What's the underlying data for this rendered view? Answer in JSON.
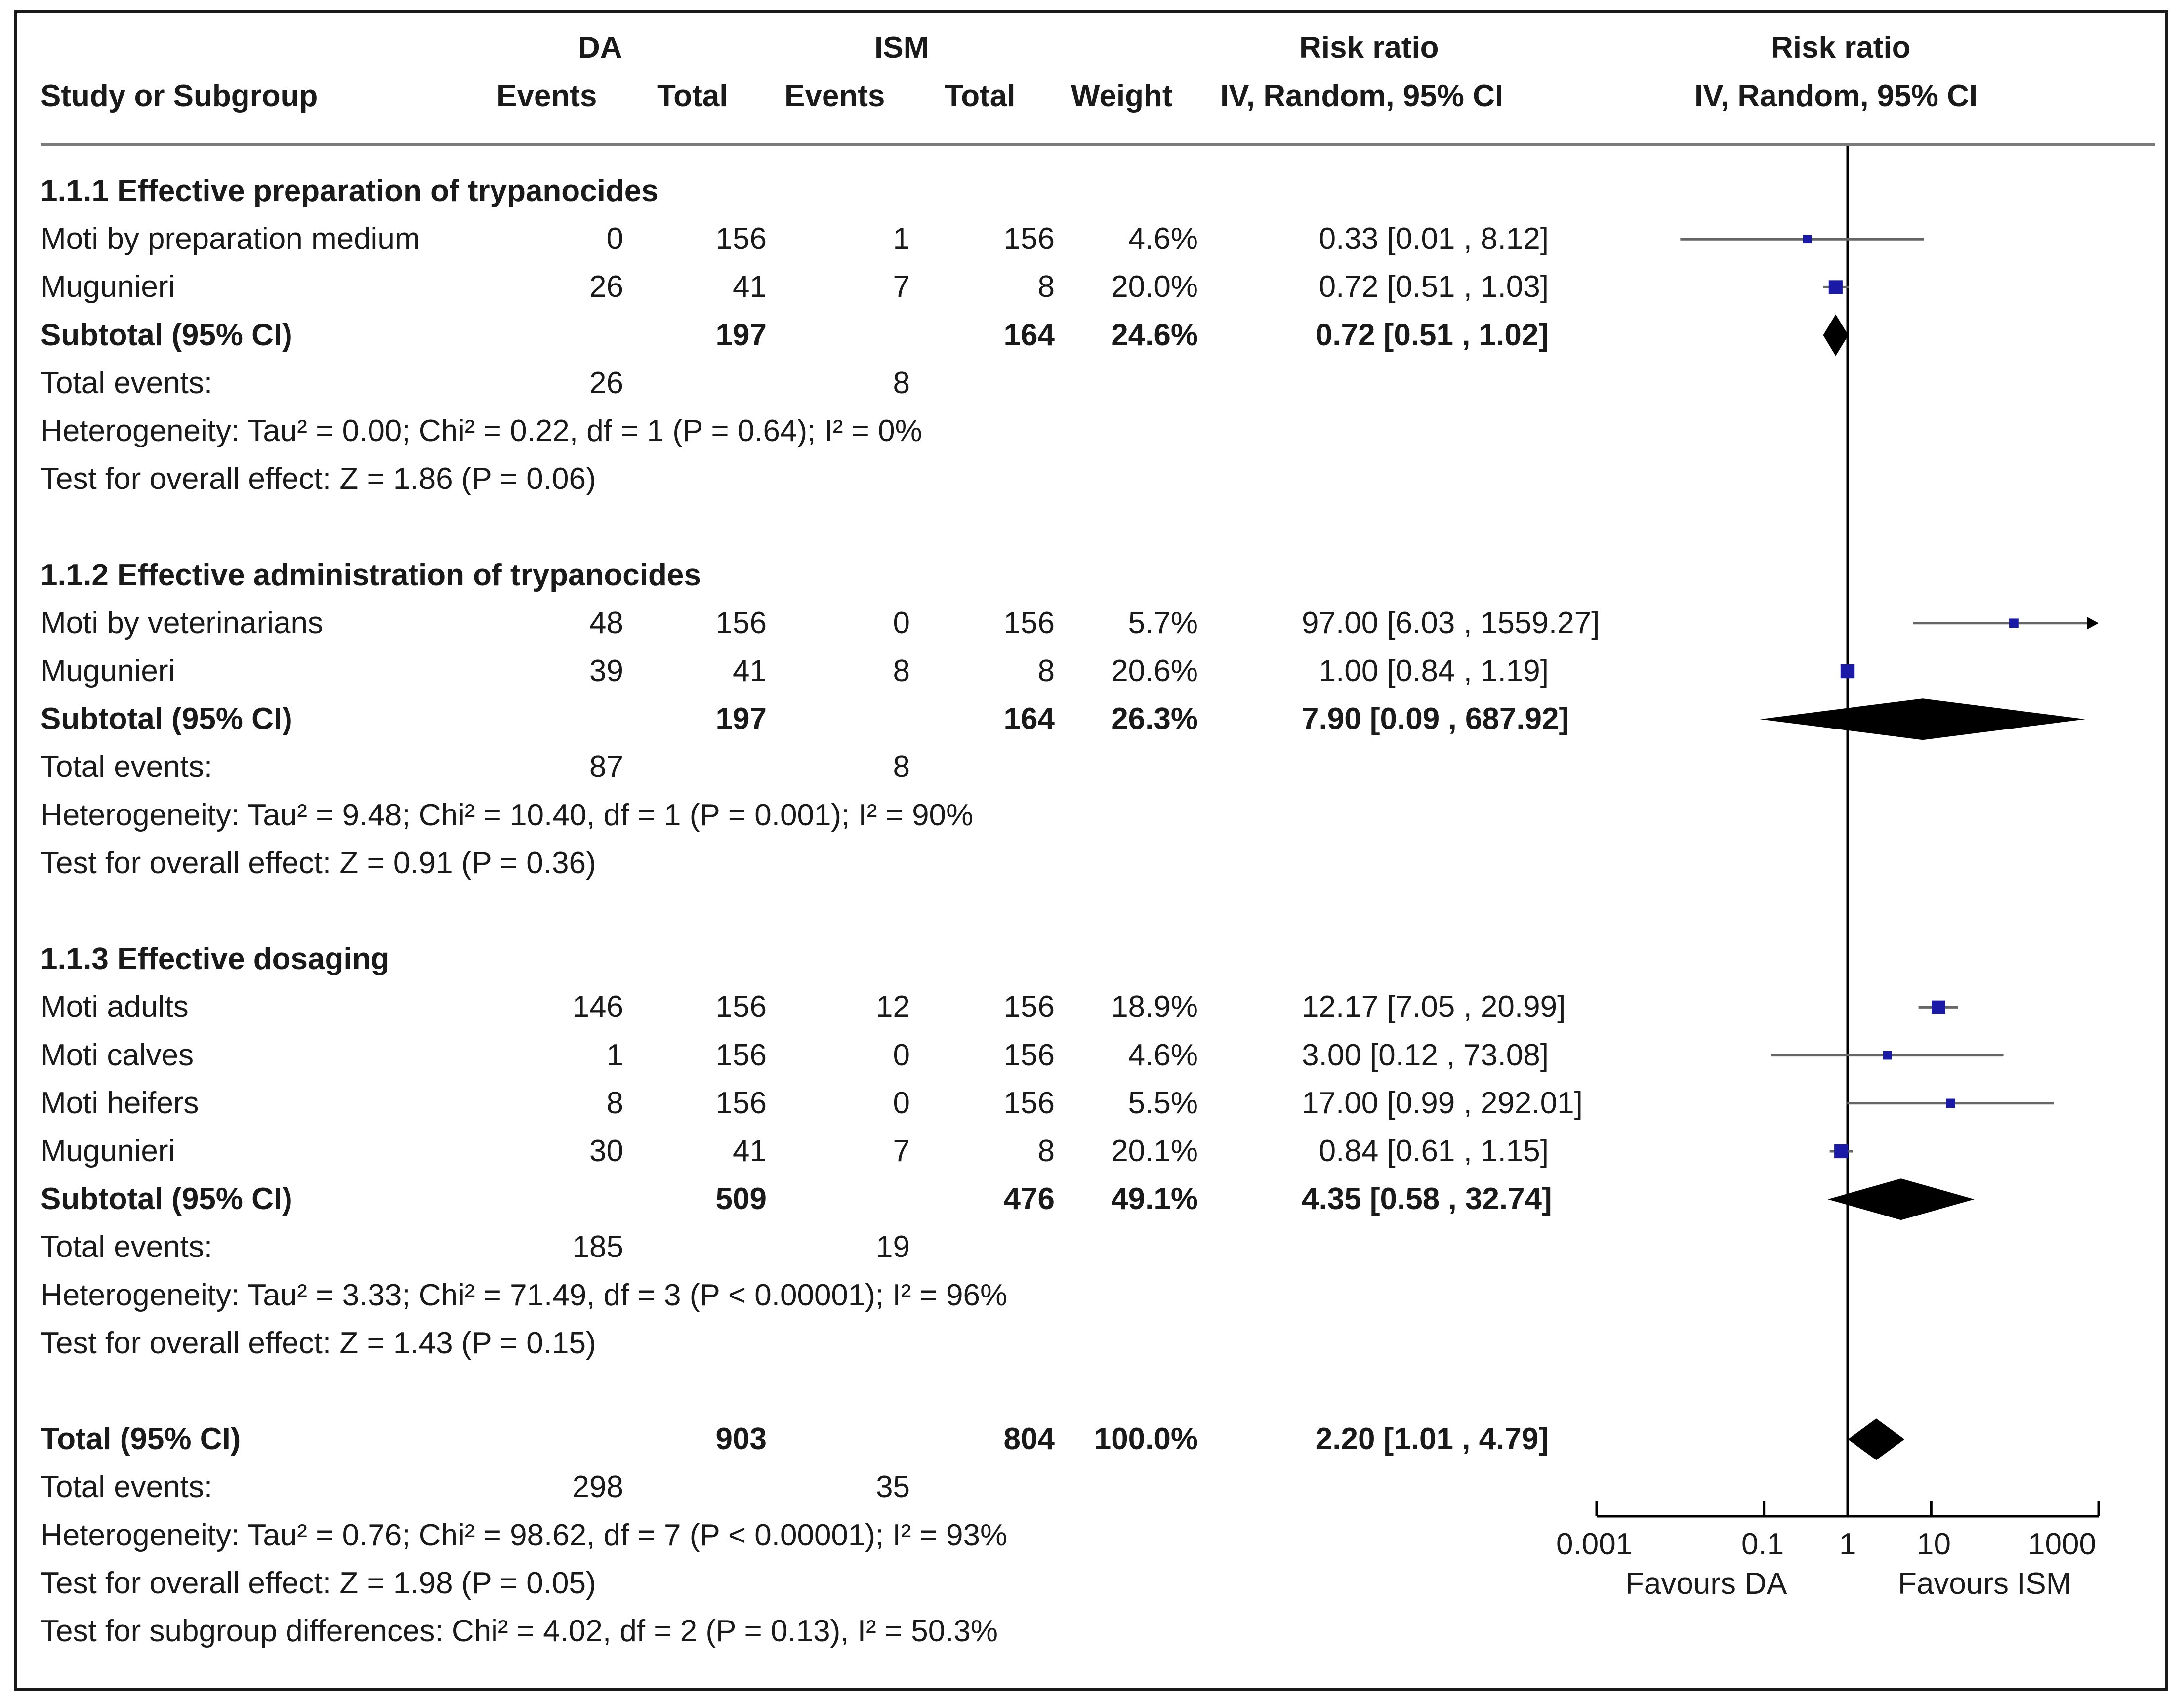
{
  "chart_data": {
    "type": "forest",
    "x_scale": "log",
    "xlim": [
      0.001,
      1000
    ],
    "x_ticks": [
      "0.001",
      "0.1",
      "1",
      "10",
      "1000"
    ],
    "null_value": 1,
    "xlabel_left": "Favours DA",
    "xlabel_right": "Favours ISM",
    "header": {
      "group1": "DA",
      "group2": "ISM",
      "study": "Study or Subgroup",
      "events": "Events",
      "total": "Total",
      "weight": "Weight",
      "effect_title": "Risk ratio",
      "effect_method": "IV, Random, 95% CI",
      "plot_title": "Risk ratio",
      "plot_method": "IV, Random, 95% CI"
    },
    "subgroups": [
      {
        "title": "1.1.1 Effective preparation of trypanocides",
        "studies": [
          {
            "name": "Moti by preparation medium",
            "e1": "0",
            "n1": "156",
            "e2": "1",
            "n2": "156",
            "weight": "4.6%",
            "ci_text": "0.33 [0.01 , 8.12]",
            "rr": 0.33,
            "lo": 0.01,
            "hi": 8.12,
            "w": 4.6,
            "arrow": false
          },
          {
            "name": "Mugunieri",
            "e1": "26",
            "n1": "41",
            "e2": "7",
            "n2": "8",
            "weight": "20.0%",
            "ci_text": "0.72 [0.51 , 1.03]",
            "rr": 0.72,
            "lo": 0.51,
            "hi": 1.03,
            "w": 20.0,
            "arrow": false
          }
        ],
        "subtotal": {
          "label": "Subtotal (95% CI)",
          "n1": "197",
          "n2": "164",
          "weight": "24.6%",
          "ci_text": "0.72 [0.51 , 1.02]",
          "rr": 0.72,
          "lo": 0.51,
          "hi": 1.02
        },
        "total_events": {
          "label": "Total events:",
          "e1": "26",
          "e2": "8"
        },
        "heterogeneity": "Heterogeneity: Tau² = 0.00; Chi² = 0.22, df = 1 (P = 0.64); I² = 0%",
        "overall": "Test for overall effect: Z = 1.86 (P = 0.06)"
      },
      {
        "title": "1.1.2 Effective administration of trypanocides",
        "studies": [
          {
            "name": "Moti by veterinarians",
            "e1": "48",
            "n1": "156",
            "e2": "0",
            "n2": "156",
            "weight": "5.7%",
            "ci_text": "97.00 [6.03 , 1559.27]",
            "rr": 97.0,
            "lo": 6.03,
            "hi": 1559.27,
            "w": 5.7,
            "arrow": true
          },
          {
            "name": "Mugunieri",
            "e1": "39",
            "n1": "41",
            "e2": "8",
            "n2": "8",
            "weight": "20.6%",
            "ci_text": "1.00 [0.84 , 1.19]",
            "rr": 1.0,
            "lo": 0.84,
            "hi": 1.19,
            "w": 20.6,
            "arrow": false
          }
        ],
        "subtotal": {
          "label": "Subtotal (95% CI)",
          "n1": "197",
          "n2": "164",
          "weight": "26.3%",
          "ci_text": "7.90 [0.09 , 687.92]",
          "rr": 7.9,
          "lo": 0.09,
          "hi": 687.92
        },
        "total_events": {
          "label": "Total events:",
          "e1": "87",
          "e2": "8"
        },
        "heterogeneity": "Heterogeneity: Tau² = 9.48; Chi² = 10.40, df = 1 (P = 0.001); I² = 90%",
        "overall": "Test for overall effect: Z = 0.91 (P = 0.36)"
      },
      {
        "title": "1.1.3 Effective dosaging",
        "studies": [
          {
            "name": "Moti adults",
            "e1": "146",
            "n1": "156",
            "e2": "12",
            "n2": "156",
            "weight": "18.9%",
            "ci_text": "12.17 [7.05 , 20.99]",
            "rr": 12.17,
            "lo": 7.05,
            "hi": 20.99,
            "w": 18.9,
            "arrow": false
          },
          {
            "name": "Moti calves",
            "e1": "1",
            "n1": "156",
            "e2": "0",
            "n2": "156",
            "weight": "4.6%",
            "ci_text": "3.00 [0.12 , 73.08]",
            "rr": 3.0,
            "lo": 0.12,
            "hi": 73.08,
            "w": 4.6,
            "arrow": false
          },
          {
            "name": "Moti heifers",
            "e1": "8",
            "n1": "156",
            "e2": "0",
            "n2": "156",
            "weight": "5.5%",
            "ci_text": "17.00 [0.99 , 292.01]",
            "rr": 17.0,
            "lo": 0.99,
            "hi": 292.01,
            "w": 5.5,
            "arrow": false
          },
          {
            "name": "Mugunieri",
            "e1": "30",
            "n1": "41",
            "e2": "7",
            "n2": "8",
            "weight": "20.1%",
            "ci_text": "0.84 [0.61 , 1.15]",
            "rr": 0.84,
            "lo": 0.61,
            "hi": 1.15,
            "w": 20.1,
            "arrow": false
          }
        ],
        "subtotal": {
          "label": "Subtotal (95% CI)",
          "n1": "509",
          "n2": "476",
          "weight": "49.1%",
          "ci_text": "4.35 [0.58 , 32.74]",
          "rr": 4.35,
          "lo": 0.58,
          "hi": 32.74
        },
        "total_events": {
          "label": "Total events:",
          "e1": "185",
          "e2": "19"
        },
        "heterogeneity": "Heterogeneity: Tau² = 3.33; Chi² = 71.49, df = 3 (P < 0.00001); I² = 96%",
        "overall": "Test for overall effect: Z = 1.43 (P = 0.15)"
      }
    ],
    "total": {
      "label": "Total (95% CI)",
      "n1": "903",
      "n2": "804",
      "weight": "100.0%",
      "ci_text": "2.20 [1.01 , 4.79]",
      "rr": 2.2,
      "lo": 1.01,
      "hi": 4.79
    },
    "total_events": {
      "label": "Total events:",
      "e1": "298",
      "e2": "35"
    },
    "heterogeneity": "Heterogeneity: Tau² = 0.76; Chi² = 98.62, df = 7 (P < 0.00001); I² = 93%",
    "overall": "Test for overall effect: Z = 1.98 (P = 0.05)",
    "subgroup_differences": "Test for subgroup differences: Chi² = 4.02, df = 2 (P = 0.13), I² = 50.3%",
    "colors": {
      "study_marker": "#1a1aa6",
      "diamond": "#000000",
      "ci_line": "#666666",
      "axis": "#000000"
    }
  }
}
